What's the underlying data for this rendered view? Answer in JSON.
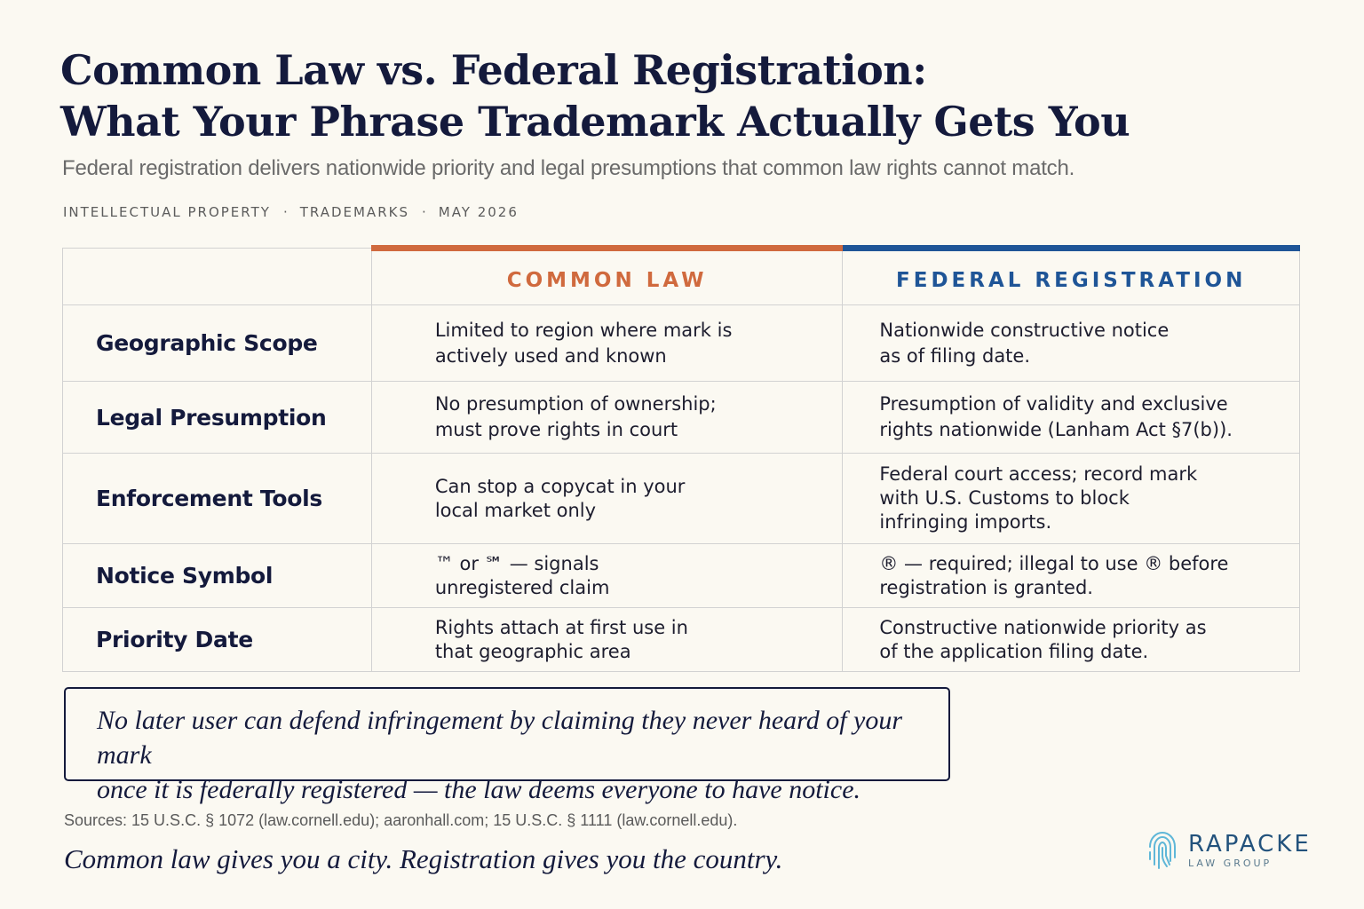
{
  "header": {
    "title_line1": "Common Law vs. Federal Registration:",
    "title_line2": "What Your Phrase Trademark Actually Gets You",
    "subtitle": "Federal registration delivers nationwide priority and legal presumptions that common law rights cannot match.",
    "meta": [
      "INTELLECTUAL PROPERTY",
      "TRADEMARKS",
      "MAY 2026"
    ],
    "meta_separator": "·"
  },
  "table": {
    "columns": {
      "common": "COMMON LAW",
      "federal": "FEDERAL REGISTRATION"
    },
    "colors": {
      "common": "#d06a3e",
      "federal": "#1f5597"
    },
    "rows": [
      {
        "label": "Geographic Scope",
        "common": [
          "Limited to region where mark is",
          "actively used and known"
        ],
        "federal": [
          "Nationwide constructive notice",
          "as of filing date."
        ]
      },
      {
        "label": "Legal Presumption",
        "common": [
          "No presumption of ownership;",
          "must prove rights in court"
        ],
        "federal": [
          "Presumption of validity and exclusive",
          "rights nationwide (Lanham Act §7(b))."
        ]
      },
      {
        "label": "Enforcement Tools",
        "common": [
          "Can stop a copycat in your",
          "local market only"
        ],
        "federal": [
          "Federal court access; record mark",
          "with U.S. Customs to block",
          "infringing imports."
        ]
      },
      {
        "label": "Notice Symbol",
        "common": [
          "™ or ℠ — signals",
          "unregistered claim"
        ],
        "federal": [
          "® — required; illegal to use ® before",
          "registration is granted."
        ]
      },
      {
        "label": "Priority Date",
        "common": [
          "Rights attach at first use in",
          "that geographic area"
        ],
        "federal": [
          "Constructive nationwide priority as",
          "of the application filing date."
        ]
      }
    ]
  },
  "callout": {
    "line1": "No later user can defend infringement by claiming they never heard of your mark",
    "line2": "once it is federally registered — the law deems everyone to have notice."
  },
  "footer": {
    "sources": "Sources: 15 U.S.C. § 1072 (law.cornell.edu); aaronhall.com; 15 U.S.C. § 1111 (law.cornell.edu).",
    "tagline": "Common law gives you a city. Registration gives you the country.",
    "logo_name": "RAPACKE",
    "logo_sub": "LAW GROUP",
    "logo_icon": "fingerprint-icon"
  }
}
